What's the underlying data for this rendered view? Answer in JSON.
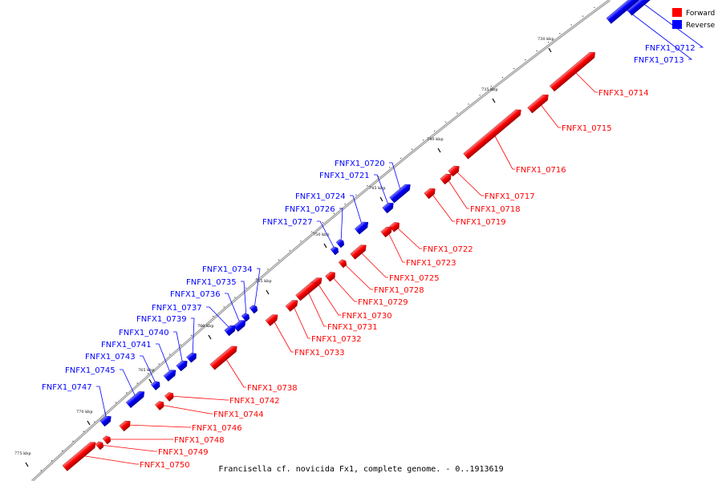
{
  "caption": "Francisella cf. novicida Fx1, complete genome. - 0..1913619",
  "legend": {
    "forward": {
      "label": "Forward",
      "color": "#ff0000"
    },
    "reverse": {
      "label": "Reverse",
      "color": "#0000ff"
    }
  },
  "ticks": [
    "730 kbp",
    "735 kbp",
    "740 kbp",
    "745 kbp",
    "750 kbp",
    "755 kbp",
    "760 kbp",
    "765 kbp",
    "770 kbp",
    "775 kbp"
  ],
  "genes": [
    {
      "name": "FNFX1_0712",
      "strand": "reverse"
    },
    {
      "name": "FNFX1_0713",
      "strand": "reverse"
    },
    {
      "name": "FNFX1_0714",
      "strand": "forward"
    },
    {
      "name": "FNFX1_0715",
      "strand": "forward"
    },
    {
      "name": "FNFX1_0716",
      "strand": "forward"
    },
    {
      "name": "FNFX1_0717",
      "strand": "forward"
    },
    {
      "name": "FNFX1_0718",
      "strand": "forward"
    },
    {
      "name": "FNFX1_0719",
      "strand": "forward"
    },
    {
      "name": "FNFX1_0720",
      "strand": "reverse"
    },
    {
      "name": "FNFX1_0721",
      "strand": "reverse"
    },
    {
      "name": "FNFX1_0722",
      "strand": "forward"
    },
    {
      "name": "FNFX1_0723",
      "strand": "forward"
    },
    {
      "name": "FNFX1_0724",
      "strand": "reverse"
    },
    {
      "name": "FNFX1_0725",
      "strand": "forward"
    },
    {
      "name": "FNFX1_0726",
      "strand": "reverse"
    },
    {
      "name": "FNFX1_0727",
      "strand": "reverse"
    },
    {
      "name": "FNFX1_0728",
      "strand": "forward"
    },
    {
      "name": "FNFX1_0729",
      "strand": "forward"
    },
    {
      "name": "FNFX1_0730",
      "strand": "forward"
    },
    {
      "name": "FNFX1_0731",
      "strand": "forward"
    },
    {
      "name": "FNFX1_0732",
      "strand": "forward"
    },
    {
      "name": "FNFX1_0733",
      "strand": "forward"
    },
    {
      "name": "FNFX1_0734",
      "strand": "reverse"
    },
    {
      "name": "FNFX1_0735",
      "strand": "reverse"
    },
    {
      "name": "FNFX1_0736",
      "strand": "reverse"
    },
    {
      "name": "FNFX1_0737",
      "strand": "reverse"
    },
    {
      "name": "FNFX1_0738",
      "strand": "forward"
    },
    {
      "name": "FNFX1_0739",
      "strand": "reverse"
    },
    {
      "name": "FNFX1_0740",
      "strand": "reverse"
    },
    {
      "name": "FNFX1_0741",
      "strand": "reverse"
    },
    {
      "name": "FNFX1_0742",
      "strand": "forward"
    },
    {
      "name": "FNFX1_0743",
      "strand": "reverse"
    },
    {
      "name": "FNFX1_0744",
      "strand": "forward"
    },
    {
      "name": "FNFX1_0745",
      "strand": "reverse"
    },
    {
      "name": "FNFX1_0746",
      "strand": "forward"
    },
    {
      "name": "FNFX1_0747",
      "strand": "reverse"
    },
    {
      "name": "FNFX1_0748",
      "strand": "forward"
    },
    {
      "name": "FNFX1_0749",
      "strand": "forward"
    },
    {
      "name": "FNFX1_0750",
      "strand": "forward"
    }
  ]
}
